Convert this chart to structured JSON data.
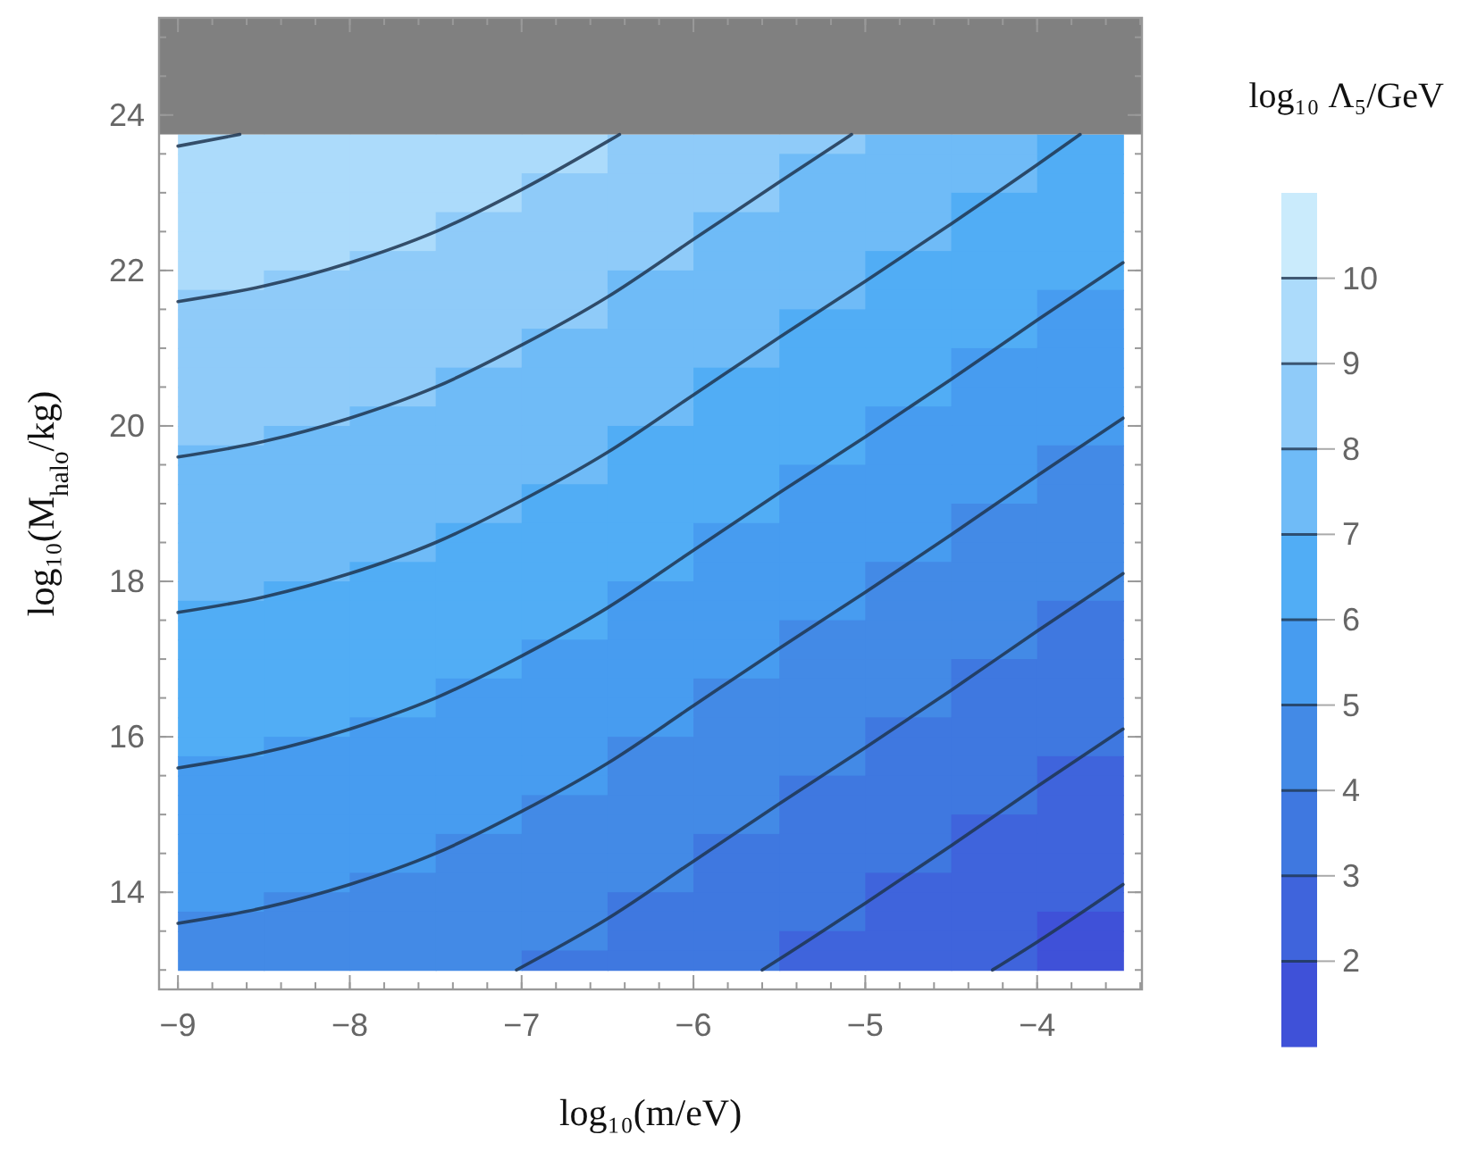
{
  "chart_data": {
    "type": "heatmap",
    "xlabel": "log₁₀(m/eV)",
    "ylabel": "log₁₀(M$_{halo}$/kg)",
    "clabel": "log₁₀ Λ₅/GeV",
    "x": [
      -8.75,
      -8.25,
      -7.75,
      -7.25,
      -6.75,
      -6.25,
      -5.75,
      -5.25,
      -4.75,
      -4.25,
      -3.75
    ],
    "y": [
      23.625,
      23.375,
      23.125,
      22.875,
      22.625,
      22.375,
      22.125,
      21.875,
      21.625,
      21.375,
      21.125,
      20.875,
      20.625,
      20.375,
      20.125,
      19.875,
      19.625,
      19.375,
      19.125,
      18.875,
      18.625,
      18.375,
      18.125,
      17.875,
      17.625,
      17.375,
      17.125,
      16.875,
      16.625,
      16.375,
      16.125,
      15.875,
      15.625,
      15.375,
      15.125,
      14.875,
      14.625,
      14.375,
      14.125,
      13.875,
      13.625,
      13.375,
      13.125
    ],
    "bands": [
      {
        "axis": "y",
        "from": 23.75,
        "to": 25.25,
        "color": "#808080"
      }
    ],
    "marker": "none",
    "series": [
      {
        "type": "line",
        "color": "#1f3550",
        "x": [
          -9,
          -8.64
        ],
        "values": [
          23.6,
          23.75
        ]
      },
      {
        "type": "line",
        "color": "#1f3550",
        "x": [
          -9,
          -8.5,
          -8,
          -7.5,
          -7,
          -6.5,
          -6.43
        ],
        "values": [
          21.6,
          21.8,
          22.1,
          22.5,
          23.04,
          23.66,
          23.75
        ]
      },
      {
        "type": "line",
        "color": "#1f3550",
        "x": [
          -9,
          -8.5,
          -8,
          -7.5,
          -7,
          -6.5,
          -6,
          -5.5,
          -5.08
        ],
        "values": [
          19.6,
          19.8,
          20.1,
          20.5,
          21.04,
          21.66,
          22.4,
          23.14,
          23.75
        ]
      },
      {
        "type": "line",
        "color": "#1f3550",
        "x": [
          -9,
          -8.5,
          -8,
          -7.5,
          -7,
          -6.5,
          -6,
          -5.5,
          -5,
          -4.5,
          -4,
          -3.75
        ],
        "values": [
          17.6,
          17.8,
          18.1,
          18.5,
          19.04,
          19.66,
          20.4,
          21.14,
          21.86,
          22.6,
          23.36,
          23.75
        ]
      },
      {
        "type": "line",
        "color": "#1f3550",
        "x": [
          -9,
          -8.5,
          -8,
          -7.5,
          -7,
          -6.5,
          -6,
          -5.5,
          -5,
          -4.5,
          -4,
          -3.5
        ],
        "values": [
          15.6,
          15.8,
          16.1,
          16.5,
          17.04,
          17.66,
          18.4,
          19.14,
          19.86,
          20.6,
          21.36,
          22.1
        ]
      },
      {
        "type": "line",
        "color": "#1f3550",
        "x": [
          -9,
          -8.5,
          -8,
          -7.5,
          -7,
          -6.5,
          -6,
          -5.5,
          -5,
          -4.5,
          -4,
          -3.5
        ],
        "values": [
          13.6,
          13.8,
          14.1,
          14.5,
          15.04,
          15.66,
          16.4,
          17.14,
          17.86,
          18.6,
          19.36,
          20.1
        ]
      },
      {
        "type": "line",
        "color": "#1f3550",
        "x": [
          -7.03,
          -6.5,
          -6,
          -5.5,
          -5,
          -4.5,
          -4,
          -3.5
        ],
        "values": [
          13,
          13.66,
          14.4,
          15.14,
          15.86,
          16.6,
          17.36,
          18.1
        ]
      },
      {
        "type": "line",
        "color": "#1f3550",
        "x": [
          -5.6,
          -5.5,
          -5,
          -4.5,
          -4,
          -3.5
        ],
        "values": [
          13,
          13.14,
          13.86,
          14.6,
          15.36,
          16.1
        ]
      },
      {
        "type": "line",
        "color": "#1f3550",
        "x": [
          -4.26,
          -4,
          -3.5
        ],
        "values": [
          13,
          13.36,
          14.1
        ]
      }
    ],
    "xlim": [
      -9.11,
      -3.39
    ],
    "xticks": [
      -9,
      -8,
      -7,
      -6,
      -5,
      -4
    ],
    "ylim": [
      12.75,
      25.25
    ],
    "yticks": [
      14,
      16,
      18,
      20,
      22,
      24
    ],
    "clim": [
      1,
      11
    ],
    "cticks": [
      2,
      3,
      4,
      5,
      6,
      7,
      8,
      9,
      10
    ],
    "colors": [
      "#3f51d8",
      "#3f64dc",
      "#3f78e0",
      "#438ae6",
      "#479cf0",
      "#51adf5",
      "#6fbbf7",
      "#8fcbf9",
      "#acdbfb",
      "#caebfc"
    ],
    "grid": false,
    "cells": [
      [
        9.96,
        9.84,
        9.66,
        9.43,
        9.14,
        8.8,
        8.43,
        8.06,
        7.7,
        7.32,
        6.94
      ],
      [
        9.84,
        9.72,
        9.54,
        9.31,
        9.02,
        8.68,
        8.31,
        7.94,
        7.58,
        7.2,
        6.82
      ],
      [
        9.71,
        9.59,
        9.41,
        9.18,
        8.89,
        8.55,
        8.18,
        7.81,
        7.45,
        7.07,
        6.69
      ],
      [
        9.59,
        9.47,
        9.29,
        9.06,
        8.77,
        8.43,
        8.06,
        7.69,
        7.33,
        6.95,
        6.57
      ],
      [
        9.46,
        9.34,
        9.16,
        8.93,
        8.64,
        8.3,
        7.93,
        7.56,
        7.2,
        6.82,
        6.44
      ],
      [
        9.34,
        9.22,
        9.04,
        8.81,
        8.52,
        8.18,
        7.81,
        7.44,
        7.08,
        6.7,
        6.32
      ],
      [
        9.21,
        9.09,
        8.91,
        8.68,
        8.39,
        8.05,
        7.68,
        7.31,
        6.95,
        6.57,
        6.19
      ],
      [
        9.09,
        8.97,
        8.79,
        8.56,
        8.27,
        7.93,
        7.56,
        7.19,
        6.83,
        6.45,
        6.07
      ],
      [
        8.96,
        8.84,
        8.66,
        8.43,
        8.14,
        7.8,
        7.43,
        7.06,
        6.7,
        6.32,
        5.94
      ],
      [
        8.84,
        8.72,
        8.54,
        8.31,
        8.02,
        7.68,
        7.31,
        6.94,
        6.58,
        6.2,
        5.82
      ],
      [
        8.71,
        8.59,
        8.41,
        8.18,
        7.89,
        7.55,
        7.18,
        6.81,
        6.45,
        6.07,
        5.69
      ],
      [
        8.59,
        8.47,
        8.29,
        8.06,
        7.77,
        7.43,
        7.06,
        6.69,
        6.33,
        5.95,
        5.57
      ],
      [
        8.46,
        8.34,
        8.16,
        7.93,
        7.64,
        7.3,
        6.93,
        6.56,
        6.2,
        5.82,
        5.44
      ],
      [
        8.34,
        8.22,
        8.04,
        7.81,
        7.52,
        7.18,
        6.81,
        6.44,
        6.08,
        5.7,
        5.32
      ],
      [
        8.21,
        8.09,
        7.91,
        7.68,
        7.39,
        7.05,
        6.68,
        6.31,
        5.95,
        5.57,
        5.19
      ],
      [
        8.09,
        7.97,
        7.79,
        7.56,
        7.27,
        6.93,
        6.56,
        6.19,
        5.83,
        5.45,
        5.07
      ],
      [
        7.96,
        7.84,
        7.66,
        7.43,
        7.14,
        6.8,
        6.43,
        6.06,
        5.7,
        5.32,
        4.94
      ],
      [
        7.84,
        7.72,
        7.54,
        7.31,
        7.02,
        6.68,
        6.31,
        5.94,
        5.58,
        5.2,
        4.82
      ],
      [
        7.71,
        7.59,
        7.41,
        7.18,
        6.89,
        6.55,
        6.18,
        5.81,
        5.45,
        5.07,
        4.69
      ],
      [
        7.59,
        7.47,
        7.29,
        7.06,
        6.77,
        6.43,
        6.06,
        5.69,
        5.33,
        4.95,
        4.57
      ],
      [
        7.46,
        7.34,
        7.16,
        6.93,
        6.64,
        6.3,
        5.93,
        5.56,
        5.2,
        4.82,
        4.44
      ],
      [
        7.34,
        7.22,
        7.04,
        6.81,
        6.52,
        6.18,
        5.81,
        5.44,
        5.08,
        4.7,
        4.32
      ],
      [
        7.21,
        7.09,
        6.91,
        6.68,
        6.39,
        6.05,
        5.68,
        5.31,
        4.95,
        4.57,
        4.19
      ],
      [
        7.09,
        6.97,
        6.79,
        6.56,
        6.27,
        5.93,
        5.56,
        5.19,
        4.83,
        4.45,
        4.07
      ],
      [
        6.96,
        6.84,
        6.66,
        6.43,
        6.14,
        5.8,
        5.43,
        5.06,
        4.7,
        4.32,
        3.94
      ],
      [
        6.84,
        6.72,
        6.54,
        6.31,
        6.02,
        5.68,
        5.31,
        4.94,
        4.58,
        4.2,
        3.82
      ],
      [
        6.71,
        6.59,
        6.41,
        6.18,
        5.89,
        5.55,
        5.18,
        4.81,
        4.45,
        4.07,
        3.69
      ],
      [
        6.59,
        6.47,
        6.29,
        6.06,
        5.77,
        5.43,
        5.06,
        4.69,
        4.33,
        3.95,
        3.57
      ],
      [
        6.46,
        6.34,
        6.16,
        5.93,
        5.64,
        5.3,
        4.93,
        4.56,
        4.2,
        3.82,
        3.44
      ],
      [
        6.34,
        6.22,
        6.04,
        5.81,
        5.52,
        5.18,
        4.81,
        4.44,
        4.08,
        3.7,
        3.32
      ],
      [
        6.21,
        6.09,
        5.91,
        5.68,
        5.39,
        5.05,
        4.68,
        4.31,
        3.95,
        3.57,
        3.19
      ],
      [
        6.09,
        5.97,
        5.79,
        5.56,
        5.27,
        4.93,
        4.56,
        4.19,
        3.83,
        3.45,
        3.07
      ],
      [
        5.96,
        5.84,
        5.66,
        5.43,
        5.14,
        4.8,
        4.43,
        4.06,
        3.7,
        3.32,
        2.94
      ],
      [
        5.84,
        5.72,
        5.54,
        5.31,
        5.02,
        4.68,
        4.31,
        3.94,
        3.58,
        3.2,
        2.82
      ],
      [
        5.71,
        5.59,
        5.41,
        5.18,
        4.89,
        4.55,
        4.18,
        3.81,
        3.45,
        3.07,
        2.69
      ],
      [
        5.59,
        5.47,
        5.29,
        5.06,
        4.77,
        4.43,
        4.06,
        3.69,
        3.33,
        2.95,
        2.57
      ],
      [
        5.46,
        5.34,
        5.16,
        4.93,
        4.64,
        4.3,
        3.93,
        3.56,
        3.2,
        2.82,
        2.44
      ],
      [
        5.34,
        5.22,
        5.04,
        4.81,
        4.52,
        4.18,
        3.81,
        3.44,
        3.08,
        2.7,
        2.32
      ],
      [
        5.21,
        5.09,
        4.91,
        4.68,
        4.39,
        4.05,
        3.68,
        3.31,
        2.95,
        2.57,
        2.19
      ],
      [
        5.09,
        4.97,
        4.79,
        4.56,
        4.27,
        3.93,
        3.56,
        3.19,
        2.83,
        2.45,
        2.07
      ],
      [
        4.96,
        4.84,
        4.66,
        4.43,
        4.14,
        3.8,
        3.43,
        3.06,
        2.7,
        2.32,
        1.94
      ],
      [
        4.84,
        4.72,
        4.54,
        4.31,
        4.02,
        3.68,
        3.31,
        2.94,
        2.58,
        2.2,
        1.82
      ],
      [
        4.71,
        4.59,
        4.41,
        4.18,
        3.89,
        3.55,
        3.18,
        2.81,
        2.45,
        2.07,
        1.69
      ]
    ]
  }
}
